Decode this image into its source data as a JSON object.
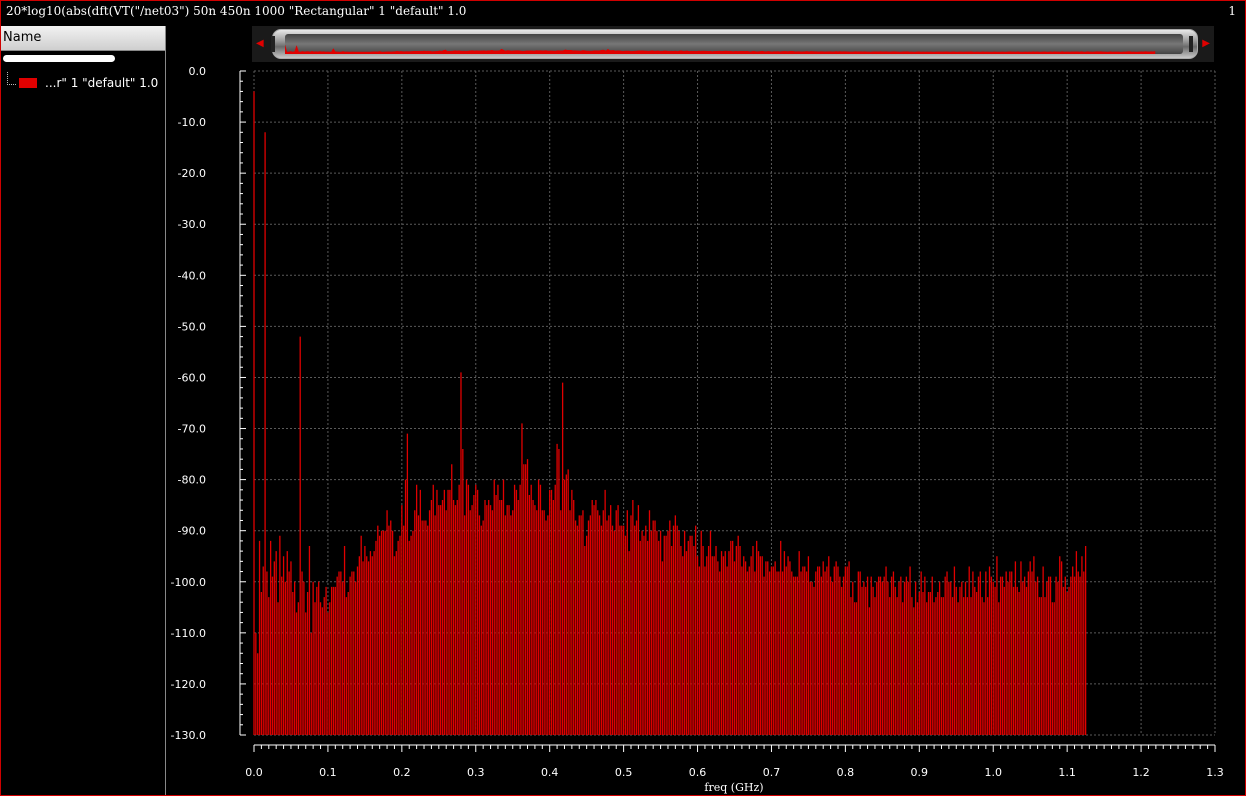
{
  "window": {
    "title": "20*log10(abs(dft(VT(\"/net03\") 50n 450n 1000 \"Rectangular\" 1 \"default\" 1.0",
    "page_number": "1"
  },
  "sidebar": {
    "header": "Name",
    "items": [
      {
        "label": "...r\" 1 \"default\" 1.0",
        "color": "#e00000"
      }
    ]
  },
  "colors": {
    "trace": "#e00000",
    "grid": "#5a5a5a",
    "background": "#000000",
    "frame": "#d00000"
  },
  "chart_data": {
    "type": "bar",
    "xlabel": "freq (GHz)",
    "ylabel": "",
    "xlim": [
      0,
      1.3
    ],
    "ylim": [
      -130,
      0
    ],
    "grid": true,
    "x_ticks": [
      "0.0",
      "0.1",
      "0.2",
      "0.3",
      "0.4",
      "0.5",
      "0.6",
      "0.7",
      "0.8",
      "0.9",
      "1.0",
      "1.1",
      "1.2",
      "1.3"
    ],
    "y_ticks": [
      "0.0",
      "-10.0",
      "-20.0",
      "-30.0",
      "-40.0",
      "-50.0",
      "-60.0",
      "-70.0",
      "-80.0",
      "-90.0",
      "-100.0",
      "-110.0",
      "-120.0",
      "-130.0"
    ],
    "series": [
      {
        "name": "...r\" 1 \"default\" 1.0",
        "x_start": 0.0,
        "x_step": 0.0025,
        "values": [
          -4,
          -110,
          -114,
          -92,
          -102,
          -97,
          -12,
          -98,
          -103,
          -92,
          -99,
          -96,
          -94,
          -104,
          -91,
          -99,
          -95,
          -100,
          -94,
          -98,
          -96,
          -102,
          -100,
          -106,
          -104,
          -52,
          -98,
          -100,
          -106,
          -102,
          -93,
          -110,
          -100,
          -104,
          -101,
          -100,
          -104,
          -105,
          -103,
          -101,
          -106,
          -104,
          -101,
          -101,
          -101,
          -99,
          -98,
          -98,
          -100,
          -93,
          -103,
          -102,
          -99,
          -98,
          -98,
          -100,
          -97,
          -95,
          -91,
          -96,
          -93,
          -95,
          -96,
          -94,
          -95,
          -94,
          -92,
          -89,
          -91,
          -90,
          -90,
          -90,
          -86,
          -89,
          -88,
          -90,
          -95,
          -94,
          -92,
          -91,
          -85,
          -89,
          -80,
          -71,
          -92,
          -91,
          -90,
          -86,
          -81,
          -87,
          -82,
          -88,
          -88,
          -88,
          -89,
          -86,
          -84,
          -81,
          -87,
          -82,
          -85,
          -85,
          -84,
          -82,
          -86,
          -82,
          -82,
          -77,
          -84,
          -85,
          -84,
          -81,
          -59,
          -74,
          -87,
          -80,
          -81,
          -86,
          -85,
          -83,
          -81,
          -82,
          -87,
          -89,
          -88,
          -84,
          -85,
          -84,
          -85,
          -86,
          -80,
          -83,
          -81,
          -84,
          -84,
          -80,
          -87,
          -85,
          -85,
          -87,
          -86,
          -81,
          -82,
          -84,
          -81,
          -69,
          -77,
          -77,
          -76,
          -83,
          -81,
          -84,
          -85,
          -86,
          -80,
          -81,
          -86,
          -86,
          -88,
          -87,
          -82,
          -82,
          -84,
          -81,
          -73,
          -74,
          -86,
          -61,
          -80,
          -79,
          -78,
          -86,
          -82,
          -84,
          -88,
          -89,
          -87,
          -87,
          -86,
          -93,
          -91,
          -88,
          -87,
          -84,
          -85,
          -84,
          -86,
          -87,
          -89,
          -86,
          -82,
          -88,
          -87,
          -85,
          -89,
          -90,
          -86,
          -85,
          -89,
          -89,
          -89,
          -91,
          -86,
          -94,
          -87,
          -84,
          -89,
          -88,
          -85,
          -92,
          -90,
          -91,
          -89,
          -92,
          -86,
          -90,
          -88,
          -88,
          -90,
          -92,
          -90,
          -96,
          -91,
          -91,
          -90,
          -88,
          -93,
          -89,
          -87,
          -89,
          -90,
          -93,
          -95,
          -90,
          -94,
          -92,
          -91,
          -91,
          -93,
          -89,
          -95,
          -97,
          -90,
          -93,
          -97,
          -95,
          -93,
          -90,
          -95,
          -95,
          -93,
          -96,
          -98,
          -94,
          -95,
          -94,
          -97,
          -94,
          -92,
          -92,
          -96,
          -93,
          -91,
          -93,
          -97,
          -95,
          -96,
          -98,
          -97,
          -95,
          -93,
          -98,
          -92,
          -94,
          -95,
          -95,
          -99,
          -96,
          -96,
          -98,
          -97,
          -97,
          -96,
          -98,
          -98,
          -92,
          -98,
          -94,
          -97,
          -95,
          -96,
          -98,
          -99,
          -99,
          -99,
          -94,
          -98,
          -97,
          -97,
          -98,
          -95,
          -100,
          -100,
          -101,
          -98,
          -97,
          -97,
          -99,
          -96,
          -98,
          -97,
          -95,
          -99,
          -100,
          -97,
          -96,
          -97,
          -99,
          -101,
          -99,
          -97,
          -97,
          -96,
          -103,
          -100,
          -104,
          -104,
          -98,
          -98,
          -101,
          -100,
          -101,
          -99,
          -105,
          -99,
          -101,
          -103,
          -100,
          -99,
          -99,
          -100,
          -99,
          -97,
          -100,
          -103,
          -99,
          -98,
          -101,
          -103,
          -100,
          -99,
          -104,
          -100,
          -99,
          -100,
          -97,
          -103,
          -105,
          -100,
          -104,
          -102,
          -98,
          -102,
          -99,
          -104,
          -102,
          -102,
          -99,
          -104,
          -103,
          -102,
          -100,
          -103,
          -103,
          -99,
          -98,
          -100,
          -100,
          -103,
          -97,
          -101,
          -104,
          -101,
          -100,
          -103,
          -100,
          -103,
          -97,
          -103,
          -98,
          -101,
          -102,
          -99,
          -98,
          -103,
          -104,
          -98,
          -103,
          -97,
          -99,
          -100,
          -101,
          -95,
          -104,
          -99,
          -99,
          -101,
          -98,
          -100,
          -98,
          -98,
          -101,
          -96,
          -101,
          -102,
          -96,
          -100,
          -99,
          -101,
          -98,
          -96,
          -98,
          -95,
          -100,
          -99,
          -103,
          -103,
          -97,
          -103,
          -100,
          -99,
          -99,
          -104,
          -104,
          -99,
          -100,
          -95,
          -96,
          -101,
          -99,
          -102,
          -101,
          -99,
          -97,
          -99,
          -94,
          -98,
          -99,
          -95,
          -98,
          -93
        ]
      }
    ]
  }
}
